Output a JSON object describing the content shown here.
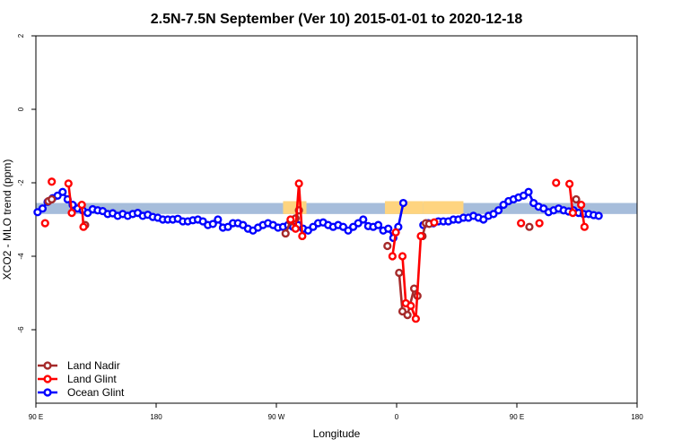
{
  "chart_data": {
    "type": "line",
    "title": "2.5N-7.5N September (Ver 10)   2015-01-01 to 2020-12-18",
    "xlabel": "Longitude",
    "ylabel": "XCO2 - MLO trend (ppm)",
    "xlim": [
      90,
      450
    ],
    "ylim": [
      -8,
      2
    ],
    "x_ticks": [
      {
        "value": 90,
        "label": "90 E"
      },
      {
        "value": 162,
        "label": "180"
      },
      {
        "value": 234,
        "label": "90 W"
      },
      {
        "value": 306,
        "label": "0"
      },
      {
        "value": 378,
        "label": "90 E"
      },
      {
        "value": 450,
        "label": "180"
      }
    ],
    "y_ticks": [
      {
        "value": 2,
        "label": "2"
      },
      {
        "value": 0,
        "label": "0"
      },
      {
        "value": -2,
        "label": "-2"
      },
      {
        "value": -4,
        "label": "-4"
      },
      {
        "value": -6,
        "label": "-6"
      }
    ],
    "grid": false,
    "legend_position": "bottom-left",
    "background_bands": [
      {
        "color": "#a6bddb",
        "x": [
          90,
          450
        ],
        "y": [
          -2.55,
          -2.85
        ]
      },
      {
        "color": "#fed47f",
        "x": [
          238,
          252
        ],
        "y": [
          -2.5,
          -2.85
        ]
      },
      {
        "color": "#fed47f",
        "x": [
          299,
          322
        ],
        "y": [
          -2.5,
          -2.85
        ]
      },
      {
        "color": "#fed47f",
        "x": [
          322,
          346
        ],
        "y": [
          -2.5,
          -2.85
        ]
      }
    ],
    "series": [
      {
        "name": "Land Nadir",
        "color": "#a52a2a",
        "segments": [
          [
            [
              97.5,
              -2.5
            ],
            [
              99.5,
              -2.45
            ]
          ],
          [
            [
              119.5,
              -3.15
            ]
          ],
          [
            [
              239.5,
              -3.38
            ],
            [
              242.5,
              -3.05
            ],
            [
              245.5,
              -2.97
            ],
            [
              247.5,
              -2.75
            ]
          ],
          [
            [
              300.5,
              -3.72
            ]
          ],
          [
            [
              307.5,
              -4.45
            ],
            [
              309.5,
              -5.5
            ],
            [
              312.5,
              -5.6
            ],
            [
              316.5,
              -4.88
            ],
            [
              318.5,
              -5.08
            ]
          ],
          [
            [
              321.5,
              -3.45
            ],
            [
              323.5,
              -3.1
            ],
            [
              325.5,
              -3.12
            ]
          ],
          [
            [
              385.5,
              -3.2
            ]
          ],
          [
            [
              413.5,
              -2.45
            ]
          ]
        ]
      },
      {
        "name": "Land Glint",
        "color": "#ff0000",
        "segments": [
          [
            [
              95.5,
              -3.1
            ]
          ],
          [
            [
              99.5,
              -1.97
            ]
          ],
          [
            [
              109.5,
              -2.02
            ],
            [
              111.5,
              -2.82
            ]
          ],
          [
            [
              117.5,
              -2.6
            ],
            [
              118.5,
              -3.2
            ]
          ],
          [
            [
              242.5,
              -3.0
            ],
            [
              245.5,
              -3.25
            ],
            [
              247.5,
              -2.02
            ],
            [
              249.5,
              -3.45
            ]
          ],
          [
            [
              303.5,
              -4.0
            ],
            [
              305.5,
              -3.35
            ]
          ],
          [
            [
              309.5,
              -4.0
            ],
            [
              311.5,
              -5.28
            ],
            [
              314.5,
              -5.35
            ],
            [
              317.5,
              -5.7
            ],
            [
              320.5,
              -3.45
            ]
          ],
          [
            [
              328.5,
              -3.08
            ]
          ],
          [
            [
              380.5,
              -3.1
            ]
          ],
          [
            [
              391.5,
              -3.1
            ]
          ],
          [
            [
              401.5,
              -2.0
            ]
          ],
          [
            [
              409.5,
              -2.03
            ],
            [
              411.5,
              -2.82
            ]
          ],
          [
            [
              416.5,
              -2.6
            ],
            [
              418.5,
              -3.2
            ]
          ]
        ]
      },
      {
        "name": "Ocean Glint",
        "color": "#0000ff",
        "segments": [
          [
            [
              91,
              -2.8
            ],
            [
              94,
              -2.7
            ],
            [
              97,
              -2.52
            ],
            [
              100,
              -2.42
            ],
            [
              103,
              -2.35
            ],
            [
              106,
              -2.25
            ],
            [
              109,
              -2.45
            ],
            [
              112,
              -2.6
            ],
            [
              115,
              -2.7
            ],
            [
              118,
              -2.75
            ],
            [
              121,
              -2.82
            ],
            [
              124,
              -2.72
            ],
            [
              127,
              -2.75
            ],
            [
              130,
              -2.77
            ],
            [
              133,
              -2.85
            ],
            [
              136,
              -2.83
            ],
            [
              139,
              -2.9
            ],
            [
              142,
              -2.85
            ],
            [
              145,
              -2.9
            ],
            [
              148,
              -2.85
            ],
            [
              151,
              -2.82
            ],
            [
              154,
              -2.9
            ],
            [
              157,
              -2.87
            ],
            [
              160,
              -2.93
            ],
            [
              163,
              -2.95
            ],
            [
              166,
              -3.0
            ],
            [
              169,
              -3.0
            ],
            [
              172,
              -3.0
            ],
            [
              175,
              -2.98
            ],
            [
              178,
              -3.05
            ],
            [
              181,
              -3.05
            ],
            [
              184,
              -3.02
            ],
            [
              187,
              -3.0
            ],
            [
              190,
              -3.05
            ],
            [
              193,
              -3.15
            ],
            [
              196,
              -3.12
            ],
            [
              199,
              -3.0
            ],
            [
              202,
              -3.22
            ],
            [
              205,
              -3.2
            ],
            [
              208,
              -3.1
            ],
            [
              211,
              -3.1
            ],
            [
              214,
              -3.15
            ],
            [
              217,
              -3.25
            ],
            [
              220,
              -3.3
            ],
            [
              223,
              -3.22
            ],
            [
              226,
              -3.15
            ],
            [
              229,
              -3.1
            ],
            [
              232,
              -3.15
            ],
            [
              235,
              -3.22
            ],
            [
              238,
              -3.2
            ],
            [
              241,
              -3.15
            ],
            [
              244,
              -3.2
            ],
            [
              247,
              -3.15
            ],
            [
              250,
              -3.25
            ],
            [
              253,
              -3.3
            ],
            [
              256,
              -3.2
            ],
            [
              259,
              -3.1
            ],
            [
              262,
              -3.08
            ],
            [
              265,
              -3.15
            ],
            [
              268,
              -3.2
            ],
            [
              271,
              -3.15
            ],
            [
              274,
              -3.2
            ],
            [
              277,
              -3.3
            ],
            [
              280,
              -3.2
            ],
            [
              283,
              -3.1
            ],
            [
              286,
              -3.0
            ],
            [
              289,
              -3.18
            ],
            [
              292,
              -3.2
            ],
            [
              295,
              -3.15
            ],
            [
              298,
              -3.3
            ],
            [
              301,
              -3.25
            ],
            [
              304,
              -3.5
            ],
            [
              307,
              -3.2
            ],
            [
              310,
              -2.55
            ]
          ],
          [
            [
              322,
              -3.15
            ],
            [
              325,
              -3.1
            ],
            [
              328,
              -3.1
            ],
            [
              331,
              -3.05
            ],
            [
              334,
              -3.05
            ],
            [
              337,
              -3.05
            ],
            [
              340,
              -3.0
            ],
            [
              343,
              -3.0
            ],
            [
              346,
              -2.95
            ],
            [
              349,
              -2.95
            ],
            [
              352,
              -2.9
            ],
            [
              355,
              -2.95
            ],
            [
              358,
              -3.0
            ],
            [
              361,
              -2.9
            ],
            [
              364,
              -2.85
            ],
            [
              367,
              -2.75
            ],
            [
              370,
              -2.6
            ],
            [
              373,
              -2.5
            ],
            [
              376,
              -2.45
            ],
            [
              379,
              -2.4
            ],
            [
              382,
              -2.35
            ],
            [
              385,
              -2.25
            ],
            [
              388,
              -2.55
            ],
            [
              391,
              -2.65
            ],
            [
              394,
              -2.7
            ],
            [
              397,
              -2.8
            ],
            [
              400,
              -2.75
            ],
            [
              403,
              -2.7
            ],
            [
              406,
              -2.75
            ],
            [
              409,
              -2.78
            ],
            [
              412,
              -2.75
            ],
            [
              415,
              -2.82
            ],
            [
              418,
              -2.85
            ],
            [
              421,
              -2.85
            ],
            [
              424,
              -2.88
            ],
            [
              427,
              -2.9
            ]
          ]
        ]
      }
    ]
  }
}
